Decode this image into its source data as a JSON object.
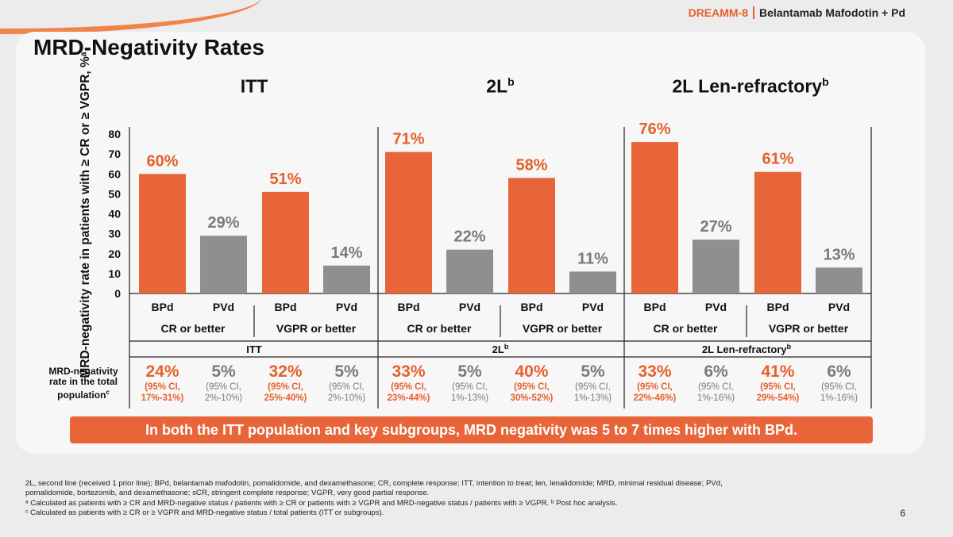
{
  "header": {
    "study": "DREAMM-8",
    "regimen": "Belantamab Mafodotin + Pd"
  },
  "title": "MRD-Negativity Rates",
  "groups": [
    {
      "title": "ITT",
      "sup": "",
      "bottom": "ITT",
      "bottom_sup": ""
    },
    {
      "title": "2L",
      "sup": "b",
      "bottom": "2L",
      "bottom_sup": "b"
    },
    {
      "title": "2L Len-refractory",
      "sup": "b",
      "bottom": "2L Len-refractory",
      "bottom_sup": "b"
    }
  ],
  "chart_data": {
    "type": "bar",
    "ylabel": "MRD-negativity rate in patients with ≥ CR or ≥ VGPR, %ᵃ",
    "ylim": [
      0,
      80
    ],
    "yticks": [
      0,
      10,
      20,
      30,
      40,
      50,
      60,
      70,
      80
    ],
    "categories": [
      "BPd",
      "PVd",
      "BPd",
      "PVd",
      "BPd",
      "PVd",
      "BPd",
      "PVd",
      "BPd",
      "PVd",
      "BPd",
      "PVd"
    ],
    "subgroups": [
      "CR or better",
      "VGPR or better",
      "CR or better",
      "VGPR or better",
      "CR or better",
      "VGPR or better"
    ],
    "values": [
      60,
      29,
      51,
      14,
      71,
      22,
      58,
      11,
      76,
      27,
      61,
      13
    ],
    "labels": [
      "60%",
      "29%",
      "51%",
      "14%",
      "71%",
      "22%",
      "58%",
      "11%",
      "76%",
      "27%",
      "61%",
      "13%"
    ],
    "colors": {
      "BPd": "#e8653a",
      "PVd": "#8f8f8f"
    }
  },
  "total_population": {
    "label": "MRD-negativity rate in the total population",
    "label_sup": "c",
    "items": [
      {
        "pct": "24%",
        "ci1": "(95% CI,",
        "ci2": "17%-31%)"
      },
      {
        "pct": "5%",
        "ci1": "(95% CI,",
        "ci2": "2%-10%)"
      },
      {
        "pct": "32%",
        "ci1": "(95% CI,",
        "ci2": "25%-40%)"
      },
      {
        "pct": "5%",
        "ci1": "(95% CI,",
        "ci2": "2%-10%)"
      },
      {
        "pct": "33%",
        "ci1": "(95% CI,",
        "ci2": "23%-44%)"
      },
      {
        "pct": "5%",
        "ci1": "(95% CI,",
        "ci2": "1%-13%)"
      },
      {
        "pct": "40%",
        "ci1": "(95% CI,",
        "ci2": "30%-52%)"
      },
      {
        "pct": "5%",
        "ci1": "(95% CI,",
        "ci2": "1%-13%)"
      },
      {
        "pct": "33%",
        "ci1": "(95% CI,",
        "ci2": "22%-46%)"
      },
      {
        "pct": "6%",
        "ci1": "(95% CI,",
        "ci2": "1%-16%)"
      },
      {
        "pct": "41%",
        "ci1": "(95% CI,",
        "ci2": "29%-54%)"
      },
      {
        "pct": "6%",
        "ci1": "(95% CI,",
        "ci2": "1%-16%)"
      }
    ]
  },
  "banner": "In both the ITT population and key subgroups, MRD negativity was 5 to 7 times higher with BPd.",
  "footnotes": [
    "2L, second line (received 1 prior line); BPd, belantamab mafodotin, pomalidomide, and dexamethasone; CR, complete response; ITT, intention to treat; len, lenalidomide; MRD, minimal residual disease; PVd,",
    "pomalidomide, bortezomib, and dexamethasone; sCR, stringent complete response; VGPR, very good partial response.",
    "ᵃ Calculated as patients with ≥ CR and MRD-negative status / patients with ≥ CR or patients with ≥ VGPR and MRD-negative status / patients with ≥ VGPR. ᵇ Post hoc analysis.",
    "ᶜ Calculated as patients with ≥ CR or ≥ VGPR and MRD-negative status / total patients (ITT or subgroups)."
  ],
  "page_number": "6"
}
